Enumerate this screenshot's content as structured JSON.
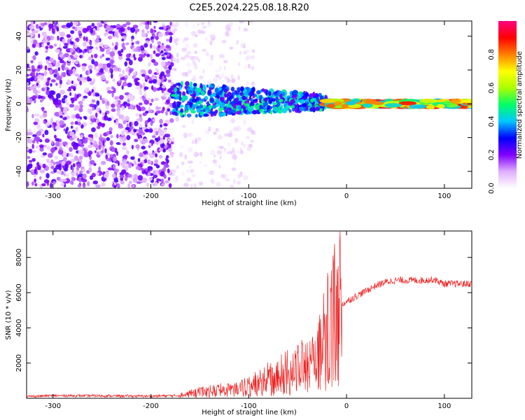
{
  "title": "C2E5.2024.225.08.18.R20",
  "chart_data": [
    {
      "type": "heatmap",
      "xlabel": "Height of straight line (km)",
      "ylabel": "Frequency (Hz)",
      "xlim": [
        -327,
        128
      ],
      "ylim": [
        -50,
        49
      ],
      "xticks": [
        -300,
        -200,
        -100,
        0,
        100
      ],
      "yticks": [
        -40,
        -20,
        0,
        20,
        40
      ],
      "colorbar": {
        "label": "Normalized spectral amplitude",
        "range": [
          0,
          1
        ],
        "ticks": [
          0.0,
          0.2,
          0.4,
          0.6,
          0.8
        ],
        "colors": [
          "#ffffff",
          "#e0b0ff",
          "#8000ff",
          "#0000ff",
          "#00c8ff",
          "#00ff66",
          "#aaff00",
          "#ffff00",
          "#ff8000",
          "#ff0000",
          "#ff0080"
        ]
      },
      "regions": [
        {
          "x": [
            -327,
            -178
          ],
          "freq_spread": [
            -49,
            49
          ],
          "amplitude": [
            0.05,
            0.25
          ]
        },
        {
          "x": [
            -178,
            -95
          ],
          "freq_spread": [
            -49,
            49
          ],
          "amplitude": [
            0.02,
            0.1
          ]
        },
        {
          "x": [
            -178,
            -20
          ],
          "freq_spread": [
            -8,
            13
          ],
          "amplitude": [
            0.2,
            0.5
          ]
        },
        {
          "x": [
            -20,
            128
          ],
          "freq_spread": [
            -2,
            2
          ],
          "amplitude": [
            0.4,
            0.95
          ]
        }
      ]
    },
    {
      "type": "line",
      "xlabel": "Height of straight line (km)",
      "ylabel": "SNR (10 * v/v)",
      "xlim": [
        -327,
        128
      ],
      "ylim": [
        0,
        9500
      ],
      "xticks": [
        -300,
        -200,
        -100,
        0,
        100
      ],
      "yticks": [
        2000,
        4000,
        6000,
        8000
      ],
      "color": "#ee2222",
      "x": [
        -327,
        -300,
        -250,
        -200,
        -170,
        -150,
        -130,
        -110,
        -90,
        -70,
        -50,
        -40,
        -30,
        -25,
        -20,
        -15,
        -10,
        -5,
        0,
        10,
        20,
        30,
        40,
        50,
        60,
        70,
        80,
        90,
        95,
        100,
        110,
        128
      ],
      "y": [
        100,
        150,
        140,
        120,
        160,
        350,
        450,
        500,
        900,
        1400,
        1700,
        1800,
        2000,
        3000,
        3800,
        4500,
        5000,
        5300,
        5500,
        5800,
        6100,
        6400,
        6600,
        6700,
        6700,
        6700,
        6700,
        6750,
        6600,
        6500,
        6500,
        6500
      ]
    }
  ]
}
